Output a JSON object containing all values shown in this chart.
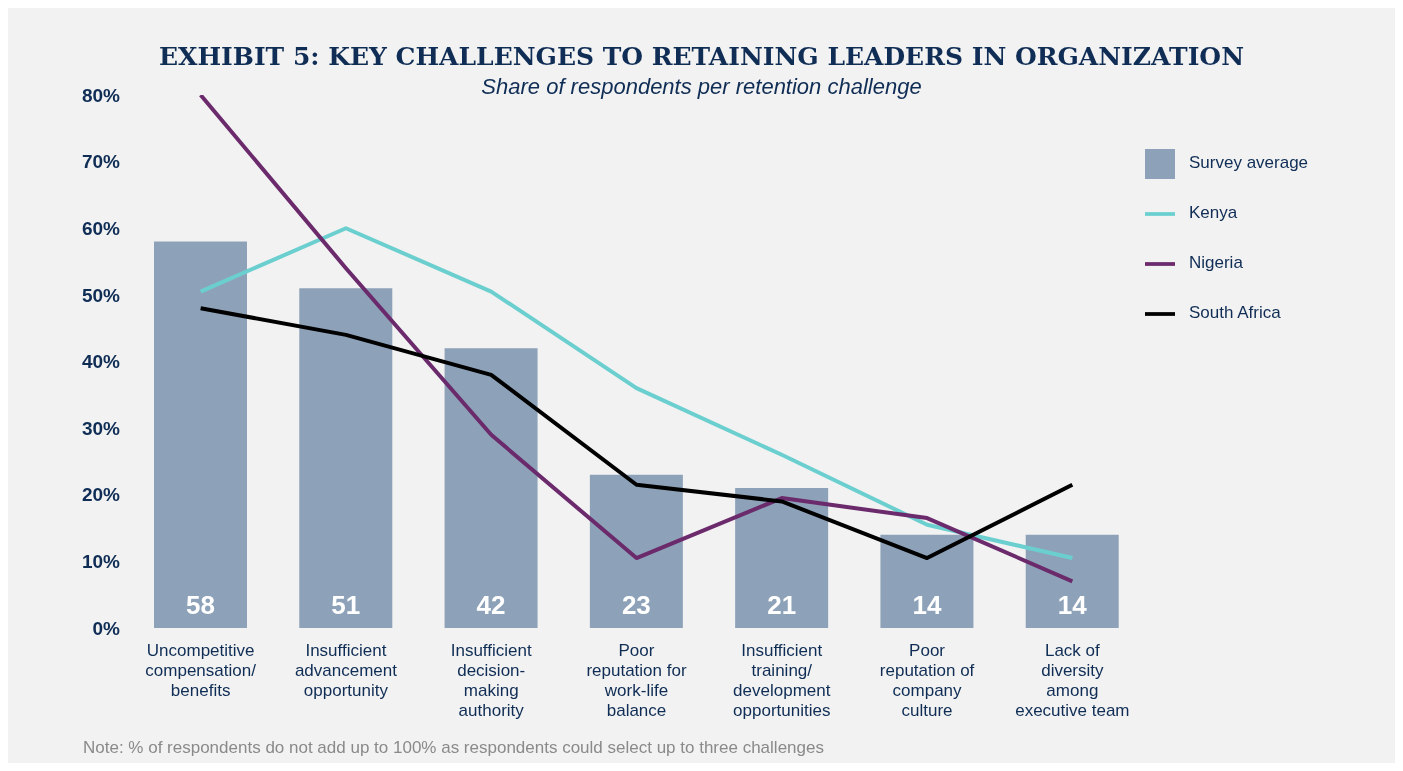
{
  "chart_data": {
    "type": "bar",
    "title": "EXHIBIT 5: KEY CHALLENGES TO RETAINING LEADERS IN ORGANIZATION",
    "subtitle": "Share of respondents per retention challenge",
    "categories": [
      "Uncompetitive compensation/ benefits",
      "Insufficient advancement opportunity",
      "Insufficient decision-making authority",
      "Poor reputation for work-life balance",
      "Insufficient training/ development opportunities",
      "Poor reputation of company culture",
      "Lack of diversity among executive team"
    ],
    "series": [
      {
        "name": "Survey average",
        "color": "#8da2b8",
        "values": [
          58,
          51,
          42,
          23,
          21,
          14,
          14
        ],
        "value_labels": [
          "58",
          "51",
          "42",
          "23",
          "21",
          "14",
          "14"
        ]
      },
      {
        "name": "Kenya",
        "type": "line",
        "color": "#6ccfcf",
        "values": [
          50.5,
          60,
          50.5,
          36,
          26,
          15.5,
          10.5
        ]
      },
      {
        "name": "Nigeria",
        "type": "line",
        "color": "#6b2a6b",
        "values": [
          80,
          54,
          29,
          10.5,
          19.5,
          16.5,
          7
        ]
      },
      {
        "name": "South Africa",
        "type": "line",
        "color": "#000000",
        "values": [
          48,
          44,
          38,
          21.5,
          19,
          10.5,
          21.5
        ]
      }
    ],
    "ylim": [
      0,
      80
    ],
    "yticks": [
      {
        "value": 0,
        "label": "0%"
      },
      {
        "value": 10,
        "label": "10%"
      },
      {
        "value": 20,
        "label": "20%"
      },
      {
        "value": 30,
        "label": "30%"
      },
      {
        "value": 40,
        "label": "40%"
      },
      {
        "value": 50,
        "label": "50%"
      },
      {
        "value": 60,
        "label": "60%"
      },
      {
        "value": 70,
        "label": "70%"
      },
      {
        "value": 80,
        "label": "80%"
      }
    ],
    "grid": false,
    "legend": "top right",
    "annotations": [
      "Note: % of respondents do not add up to 100% as respondents could select up to three challenges"
    ]
  }
}
